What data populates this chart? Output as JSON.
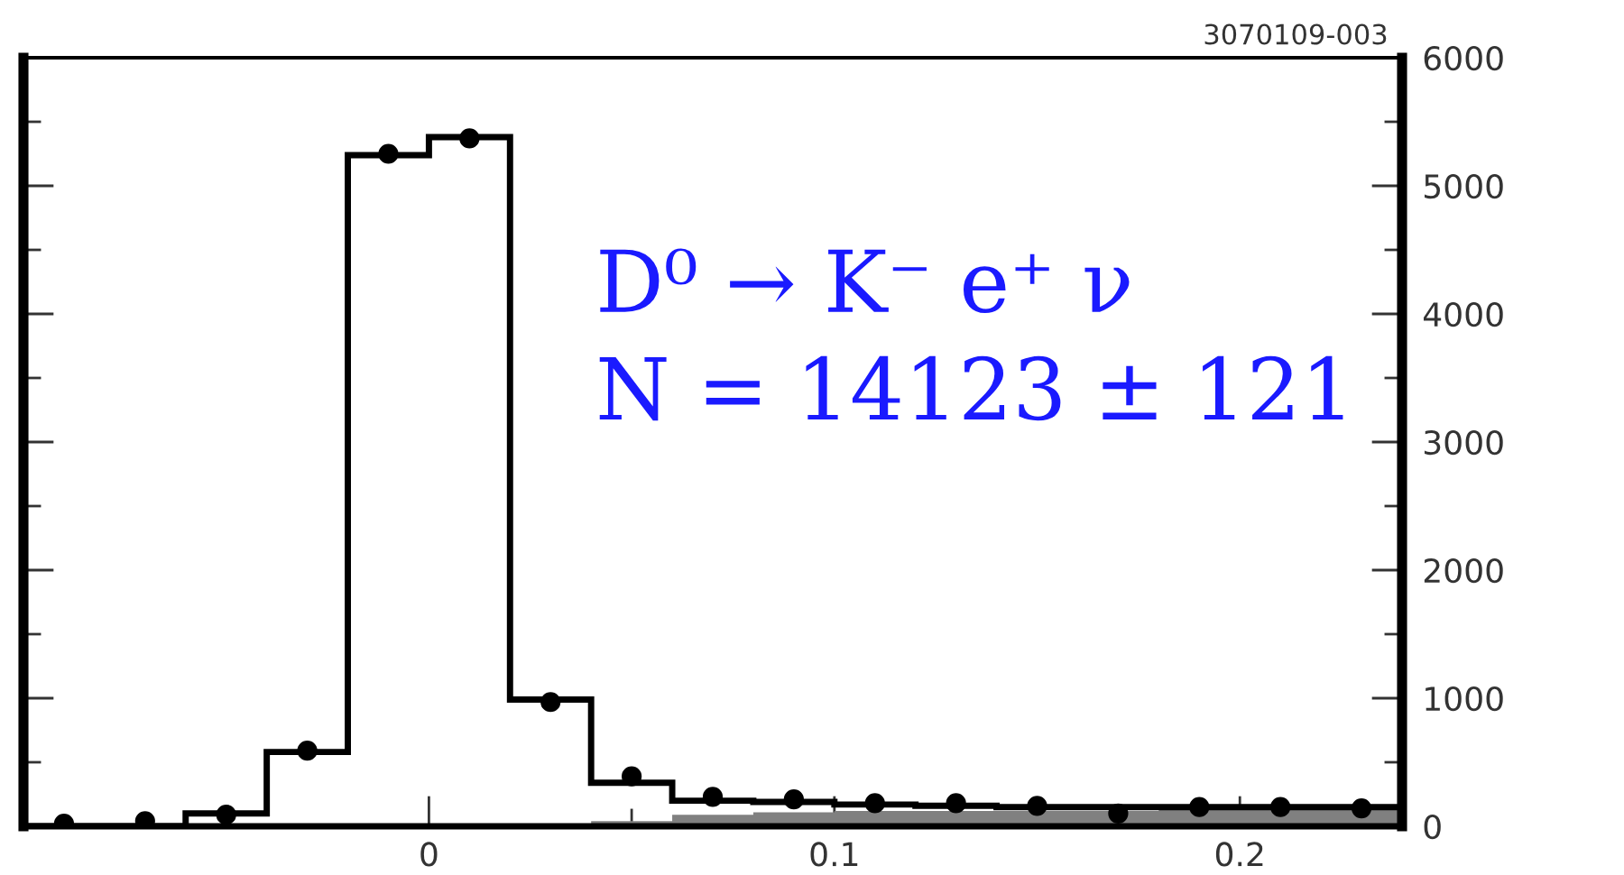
{
  "chart_data": {
    "type": "histogram",
    "bins": [
      -0.1,
      -0.08,
      -0.06,
      -0.04,
      -0.02,
      0,
      0.02,
      0.04,
      0.06,
      0.08,
      0.1,
      0.12,
      0.14,
      0.16,
      0.18,
      0.2,
      0.22,
      0.24
    ],
    "series": [
      {
        "color": "#000000",
        "values": [
          0,
          0,
          100,
          580,
          5240,
          5380,
          990,
          340,
          200,
          190,
          170,
          160,
          150,
          150,
          150,
          150,
          150
        ]
      },
      {
        "type": "histogram",
        "color": "#808080",
        "values": [
          0,
          0,
          0,
          0,
          0,
          0,
          10,
          40,
          90,
          110,
          120,
          120,
          120,
          120,
          130,
          130,
          130
        ]
      },
      {
        "type": "scatter",
        "color": "#000000",
        "marker": "circle",
        "x": [
          -0.09,
          -0.07,
          -0.05,
          -0.03,
          -0.01,
          0.01,
          0.03,
          0.05,
          0.07,
          0.09,
          0.11,
          0.13,
          0.15,
          0.17,
          0.19,
          0.21,
          0.23
        ],
        "values": [
          20,
          40,
          90,
          590,
          5250,
          5370,
          970,
          390,
          230,
          210,
          180,
          180,
          160,
          100,
          150,
          150,
          140
        ]
      }
    ],
    "xlim": [
      -0.1,
      0.24
    ],
    "xticks": [
      {
        "value": -0.05,
        "label": null
      },
      0,
      {
        "value": 0.05,
        "label": null
      },
      0.1,
      {
        "value": 0.15,
        "label": null
      },
      0.2
    ],
    "ylim": [
      0,
      6000
    ],
    "yticks": [
      0,
      {
        "value": 500,
        "label": null
      },
      1000,
      {
        "value": 1500,
        "label": null
      },
      2000,
      {
        "value": 2500,
        "label": null
      },
      3000,
      {
        "value": 3500,
        "label": null
      },
      4000,
      {
        "value": 4500,
        "label": null
      },
      5000,
      {
        "value": 5500,
        "label": null
      },
      6000
    ],
    "grid": false,
    "legend": false,
    "annotations": [
      "3070109-003",
      "D⁰ → K⁻ e⁺ ν",
      "N = 14123 ± 121"
    ]
  }
}
